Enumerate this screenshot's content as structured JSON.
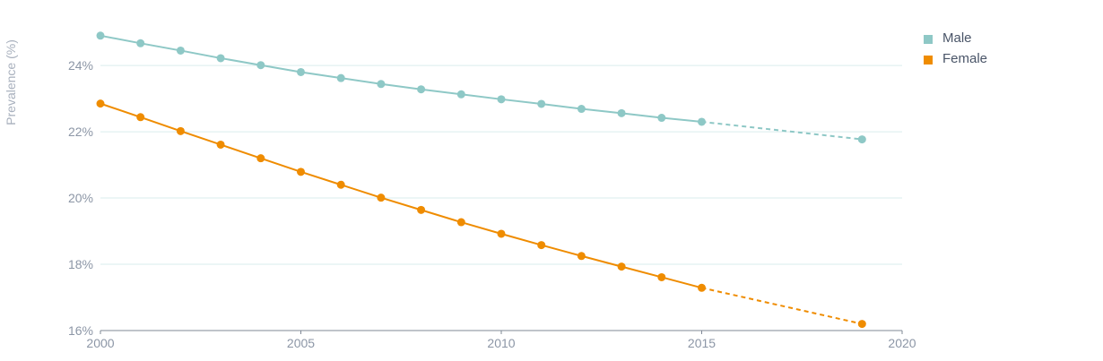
{
  "chart_data": {
    "type": "line",
    "ylabel": "Prevalence (%)",
    "xlabel": "",
    "x_ticks": [
      "2000",
      "2005",
      "2010",
      "2015",
      "2020"
    ],
    "y_ticks": [
      "16%",
      "18%",
      "20%",
      "22%",
      "24%"
    ],
    "xlim": [
      2000,
      2020
    ],
    "ylim": [
      16,
      25.3
    ],
    "grid": true,
    "legend_position": "top-right",
    "series": [
      {
        "name": "Male",
        "color": "#8ec8c6",
        "solid": {
          "x": [
            2000,
            2001,
            2002,
            2003,
            2004,
            2005,
            2006,
            2007,
            2008,
            2009,
            2010,
            2011,
            2012,
            2013,
            2014,
            2015
          ],
          "y": [
            24.9,
            24.67,
            24.45,
            24.22,
            24.01,
            23.8,
            23.62,
            23.44,
            23.28,
            23.13,
            22.98,
            22.84,
            22.69,
            22.56,
            22.42,
            22.3
          ]
        },
        "projected": {
          "x": [
            2015,
            2019
          ],
          "y": [
            22.3,
            21.77
          ]
        }
      },
      {
        "name": "Female",
        "color": "#ef8c00",
        "solid": {
          "x": [
            2000,
            2001,
            2002,
            2003,
            2004,
            2005,
            2006,
            2007,
            2008,
            2009,
            2010,
            2011,
            2012,
            2013,
            2014,
            2015
          ],
          "y": [
            22.85,
            22.44,
            22.02,
            21.61,
            21.2,
            20.79,
            20.4,
            20.01,
            19.64,
            19.27,
            18.92,
            18.58,
            18.25,
            17.93,
            17.61,
            17.29
          ]
        },
        "projected": {
          "x": [
            2015,
            2019
          ],
          "y": [
            17.29,
            16.2
          ]
        }
      }
    ]
  }
}
